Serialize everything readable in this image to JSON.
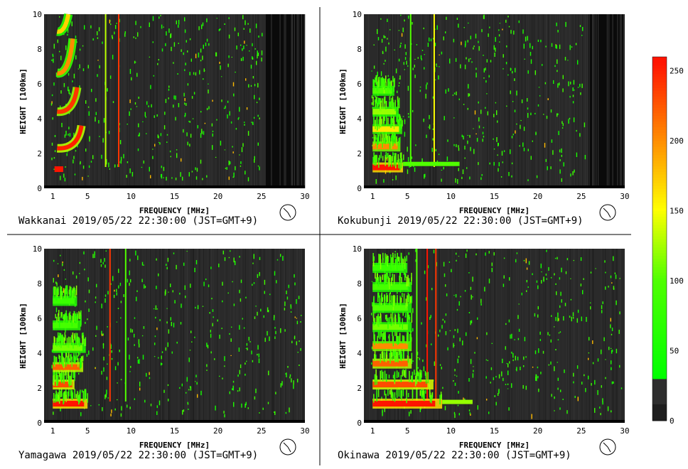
{
  "panels": [
    {
      "station": "Wakkanai",
      "caption": "Wakkanai 2019/05/22 22:30:00 (JST=GMT+9)",
      "chart_data": {
        "type": "heatmap",
        "xlabel": "FREQUENCY [MHz]",
        "ylabel": "HEIGHT [100km]",
        "xlim": [
          0,
          30
        ],
        "ylim": [
          0,
          10
        ],
        "xticks": [
          "1",
          "5",
          "10",
          "15",
          "20",
          "25",
          "30"
        ],
        "yticks": [
          "0",
          "2",
          "4",
          "6",
          "8",
          "10"
        ],
        "traces": [
          {
            "f_start": 1.5,
            "f_end": 4.3,
            "h_start": 2.3,
            "h_end": 3.6,
            "intensity": 250
          },
          {
            "f_start": 1.5,
            "f_end": 3.8,
            "h_start": 4.4,
            "h_end": 5.8,
            "intensity": 240
          },
          {
            "f_start": 1.5,
            "f_end": 3.3,
            "h_start": 6.6,
            "h_end": 8.6,
            "intensity": 200
          },
          {
            "f_start": 1.5,
            "f_end": 2.8,
            "h_start": 9.0,
            "h_end": 10.0,
            "intensity": 170
          }
        ],
        "blobs": [
          {
            "f_start": 1.2,
            "f_end": 2.2,
            "h": 1.1,
            "intensity": 255
          }
        ],
        "lines": [
          {
            "f": 7.0,
            "intensity": 130
          },
          {
            "f": 8.5,
            "intensity": 240
          }
        ],
        "dark_region_from": 25.5
      }
    },
    {
      "station": "Kokubunji",
      "caption": "Kokubunji 2019/05/22 22:30:00 (JST=GMT+9)",
      "chart_data": {
        "type": "heatmap",
        "xlabel": "FREQUENCY [MHz]",
        "ylabel": "HEIGHT [100km]",
        "xlim": [
          0,
          30
        ],
        "ylim": [
          0,
          10
        ],
        "xticks": [
          "1",
          "5",
          "10",
          "15",
          "20",
          "25",
          "30"
        ],
        "yticks": [
          "0",
          "2",
          "4",
          "6",
          "8",
          "10"
        ],
        "layers": [
          {
            "f_start": 1.0,
            "f_end": 4.5,
            "h": 1.2,
            "intensity": 255
          },
          {
            "f_start": 1.0,
            "f_end": 4.2,
            "h": 2.4,
            "intensity": 200
          },
          {
            "f_start": 1.0,
            "f_end": 4.4,
            "h": 3.4,
            "intensity": 160
          },
          {
            "f_start": 1.0,
            "f_end": 4.0,
            "h": 4.4,
            "intensity": 120
          },
          {
            "f_start": 1.0,
            "f_end": 3.5,
            "h": 5.6,
            "intensity": 100
          }
        ],
        "tail": {
          "f_start": 4.5,
          "f_end": 11.0,
          "h": 1.4,
          "intensity": 100
        },
        "lines": [
          {
            "f": 5.3,
            "intensity": 100
          },
          {
            "f": 8.0,
            "intensity": 150
          }
        ],
        "dark_region_from": 25.8
      }
    },
    {
      "station": "Yamagawa",
      "caption": "Yamagawa 2019/05/22 22:30:00 (JST=GMT+9)",
      "chart_data": {
        "type": "heatmap",
        "xlabel": "FREQUENCY [MHz]",
        "ylabel": "HEIGHT [100km]",
        "xlim": [
          0,
          30
        ],
        "ylim": [
          0,
          10
        ],
        "xticks": [
          "1",
          "5",
          "10",
          "15",
          "20",
          "25",
          "30"
        ],
        "yticks": [
          "0",
          "2",
          "4",
          "6",
          "8",
          "10"
        ],
        "layers": [
          {
            "f_start": 1.0,
            "f_end": 5.0,
            "h": 1.1,
            "intensity": 255
          },
          {
            "f_start": 1.0,
            "f_end": 3.5,
            "h": 2.2,
            "intensity": 230
          },
          {
            "f_start": 1.0,
            "f_end": 4.5,
            "h": 3.2,
            "intensity": 220
          },
          {
            "f_start": 1.0,
            "f_end": 4.8,
            "h": 4.3,
            "intensity": 110
          },
          {
            "f_start": 1.0,
            "f_end": 4.2,
            "h": 5.6,
            "intensity": 90
          },
          {
            "f_start": 1.0,
            "f_end": 3.8,
            "h": 7.0,
            "intensity": 80
          }
        ],
        "lines": [
          {
            "f": 7.5,
            "intensity": 240
          },
          {
            "f": 9.3,
            "intensity": 100
          }
        ],
        "dark_region_from": 30
      }
    },
    {
      "station": "Okinawa",
      "caption": "Okinawa 2019/05/22 22:30:00 (JST=GMT+9)",
      "chart_data": {
        "type": "heatmap",
        "xlabel": "FREQUENCY [MHz]",
        "ylabel": "HEIGHT [100km]",
        "xlim": [
          0,
          30
        ],
        "ylim": [
          0,
          10
        ],
        "xticks": [
          "1",
          "5",
          "10",
          "15",
          "20",
          "25",
          "30"
        ],
        "yticks": [
          "0",
          "2",
          "4",
          "6",
          "8",
          "10"
        ],
        "layers": [
          {
            "f_start": 1.0,
            "f_end": 9.0,
            "h": 1.1,
            "intensity": 255
          },
          {
            "f_start": 1.0,
            "f_end": 8.0,
            "h": 2.2,
            "intensity": 230
          },
          {
            "f_start": 1.0,
            "f_end": 5.5,
            "h": 3.4,
            "intensity": 220
          },
          {
            "f_start": 1.0,
            "f_end": 5.5,
            "h": 4.4,
            "intensity": 200
          },
          {
            "f_start": 1.0,
            "f_end": 5.5,
            "h": 5.5,
            "intensity": 110
          },
          {
            "f_start": 1.0,
            "f_end": 5.5,
            "h": 6.6,
            "intensity": 100
          },
          {
            "f_start": 1.0,
            "f_end": 5.5,
            "h": 7.8,
            "intensity": 90
          },
          {
            "f_start": 1.0,
            "f_end": 5.0,
            "h": 8.9,
            "intensity": 80
          }
        ],
        "tail": {
          "f_start": 9.0,
          "f_end": 12.5,
          "h": 1.2,
          "intensity": 120
        },
        "lines": [
          {
            "f": 7.2,
            "intensity": 255
          },
          {
            "f": 8.2,
            "intensity": 240
          },
          {
            "f": 6.0,
            "intensity": 100
          }
        ],
        "dark_region_from": 30
      }
    }
  ],
  "colorbar": {
    "ticks": [
      "250",
      "200",
      "150",
      "100",
      "50",
      "0"
    ],
    "tick_values": [
      250,
      200,
      150,
      100,
      50,
      0
    ],
    "vmin": 0,
    "vmax": 260
  },
  "icons": [
    "clock-icon"
  ]
}
